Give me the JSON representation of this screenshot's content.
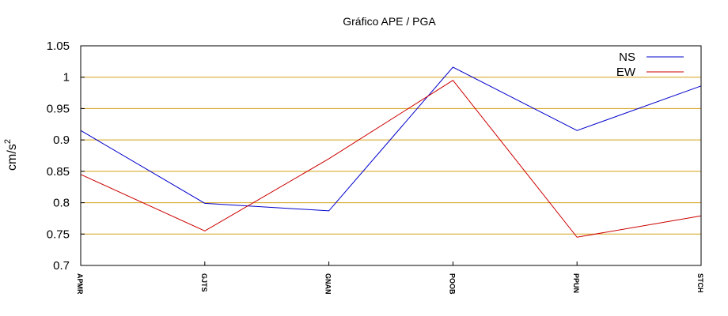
{
  "chart_data": {
    "type": "line",
    "title": "Gráfico  APE / PGA",
    "ylabel": "cm/s",
    "ylabel_superscript": "2",
    "xlabel": "",
    "categories": [
      "APMR",
      "GJTS",
      "GNAN",
      "POOB",
      "PPUN",
      "STCH"
    ],
    "ylim": [
      0.7,
      1.05
    ],
    "yticks": [
      "0.7",
      "0.75",
      "0.8",
      "0.85",
      "0.9",
      "0.95",
      "1",
      "1.05"
    ],
    "series": [
      {
        "name": "NS",
        "color": "#0000cc",
        "values": [
          0.915,
          0.799,
          0.787,
          1.016,
          0.915,
          0.986
        ]
      },
      {
        "name": "EW",
        "color": "#cc0000",
        "values": [
          0.845,
          0.755,
          0.87,
          0.995,
          0.745,
          0.779
        ]
      }
    ],
    "grid": true,
    "grid_color": "#d4a017",
    "legend_position": "top-right"
  }
}
